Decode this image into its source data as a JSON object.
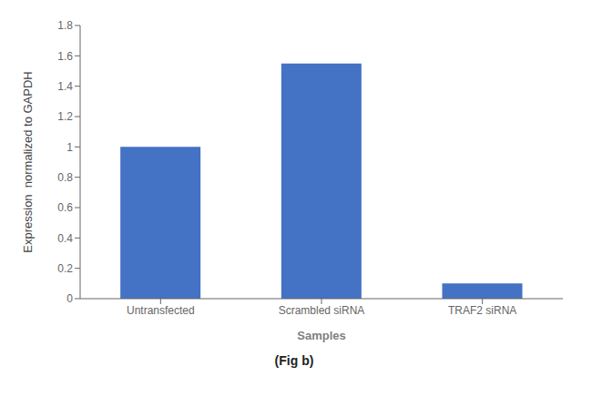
{
  "chart_data": {
    "type": "bar",
    "categories": [
      "Untransfected",
      "Scrambled siRNA",
      "TRAF2 siRNA"
    ],
    "values": [
      1.0,
      1.55,
      0.1
    ],
    "color": "#4472c4",
    "xlabel": "Samples",
    "ylabel": "Expression  normalized to GAPDH",
    "ylim": [
      0,
      1.8
    ],
    "yticks": [
      0,
      0.2,
      0.4,
      0.6,
      0.8,
      1,
      1.2,
      1.4,
      1.6,
      1.8
    ],
    "grid": false,
    "annotations": [
      "(Fig b)"
    ]
  }
}
